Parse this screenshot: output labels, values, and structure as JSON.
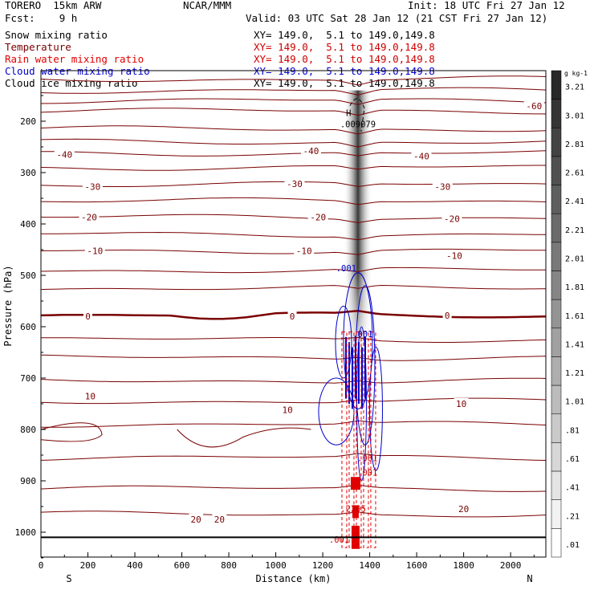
{
  "header": {
    "model": "TORERO  15km ARW",
    "org": "NCAR/MMM",
    "init": "Init: 18 UTC Fri 27 Jan 12",
    "fcst": "Fcst:    9 h",
    "valid": "Valid: 03 UTC Sat 28 Jan 12 (21 CST Fri 27 Jan 12)"
  },
  "legend": [
    {
      "label": "Snow mixing ratio",
      "xy": "XY= 149.0,  5.1 to 149.0,149.8",
      "color": "#000000",
      "xy_color": "#000000"
    },
    {
      "label": "Temperature",
      "xy": "XY= 149.0,  5.1 to 149.0,149.8",
      "color": "#7a0000",
      "xy_color": "#cc0000"
    },
    {
      "label": "Rain water mixing ratio",
      "xy": "XY= 149.0,  5.1 to 149.0,149.8",
      "color": "#e00000",
      "xy_color": "#cc0000"
    },
    {
      "label": "Cloud water mixing ratio",
      "xy": "XY= 149.0,  5.1 to 149.0,149.8",
      "color": "#0000cc",
      "xy_color": "#0000cc"
    },
    {
      "label": "Cloud ice mixing ratio",
      "xy": "XY= 149.0,  5.1 to 149.0,149.8",
      "color": "#000000",
      "xy_color": "#000000"
    }
  ],
  "chart_data": {
    "type": "contour-cross-section",
    "xlabel": "Distance (km)",
    "ylabel": "Pressure (hPa)",
    "xlim": [
      0,
      2150
    ],
    "ylim": [
      1040,
      110
    ],
    "x_ticks": [
      0,
      200,
      400,
      600,
      800,
      1000,
      1200,
      1400,
      1600,
      1800,
      2000
    ],
    "y_ticks": [
      200,
      300,
      400,
      500,
      600,
      700,
      800,
      900,
      1000
    ],
    "endpoints": {
      "left": "S",
      "right": "N"
    },
    "colorbar": {
      "units": "g kg-1",
      "labels": [
        "3.21",
        "3.01",
        "2.81",
        "2.61",
        "2.41",
        "2.21",
        "2.01",
        "1.81",
        "1.61",
        "1.41",
        "1.21",
        "1.01",
        ".81",
        ".61",
        ".41",
        ".21",
        ".01"
      ]
    },
    "temperature_labels": [
      {
        "x": 2100,
        "p": 170,
        "text": "-60"
      },
      {
        "x": 100,
        "p": 265,
        "text": "-40"
      },
      {
        "x": 1150,
        "p": 258,
        "text": "-40"
      },
      {
        "x": 1620,
        "p": 268,
        "text": "-40"
      },
      {
        "x": 220,
        "p": 327,
        "text": "-30"
      },
      {
        "x": 1080,
        "p": 322,
        "text": "-30"
      },
      {
        "x": 1710,
        "p": 327,
        "text": "-30"
      },
      {
        "x": 205,
        "p": 387,
        "text": "-20"
      },
      {
        "x": 1180,
        "p": 387,
        "text": "-20"
      },
      {
        "x": 1750,
        "p": 390,
        "text": "-20"
      },
      {
        "x": 230,
        "p": 452,
        "text": "-10"
      },
      {
        "x": 1120,
        "p": 452,
        "text": "-10"
      },
      {
        "x": 1760,
        "p": 462,
        "text": "-10"
      },
      {
        "x": 200,
        "p": 580,
        "text": "0"
      },
      {
        "x": 1070,
        "p": 580,
        "text": "0"
      },
      {
        "x": 1730,
        "p": 578,
        "text": "0"
      },
      {
        "x": 210,
        "p": 735,
        "text": "10"
      },
      {
        "x": 1050,
        "p": 762,
        "text": "10"
      },
      {
        "x": 1790,
        "p": 750,
        "text": "10"
      },
      {
        "x": 660,
        "p": 975,
        "text": "20"
      },
      {
        "x": 760,
        "p": 975,
        "text": "20"
      },
      {
        "x": 1800,
        "p": 955,
        "text": "20"
      }
    ],
    "temperature_levels": [
      {
        "p": 118,
        "value": null
      },
      {
        "p": 140,
        "value": -60
      },
      {
        "p": 160,
        "value": null
      },
      {
        "p": 180,
        "value": null
      },
      {
        "p": 215,
        "value": null
      },
      {
        "p": 240,
        "value": null
      },
      {
        "p": 262,
        "value": -40
      },
      {
        "p": 290,
        "value": null
      },
      {
        "p": 323,
        "value": -30
      },
      {
        "p": 355,
        "value": null
      },
      {
        "p": 387,
        "value": -20
      },
      {
        "p": 420,
        "value": null
      },
      {
        "p": 452,
        "value": -10
      },
      {
        "p": 490,
        "value": null
      },
      {
        "p": 525,
        "value": null
      },
      {
        "p": 578,
        "value": 0
      },
      {
        "p": 625,
        "value": null
      },
      {
        "p": 660,
        "value": null
      },
      {
        "p": 705,
        "value": null
      },
      {
        "p": 745,
        "value": 10
      },
      {
        "p": 790,
        "value": null
      },
      {
        "p": 855,
        "value": null
      },
      {
        "p": 915,
        "value": null
      },
      {
        "p": 965,
        "value": 20
      }
    ],
    "annotations": [
      {
        "x": 1310,
        "p": 190,
        "text": "H"
      },
      {
        "x": 1350,
        "p": 212,
        "text": ".009079"
      },
      {
        "x": 1300,
        "p": 492,
        "text": ".001"
      },
      {
        "x": 1370,
        "p": 620,
        "text": ".001"
      },
      {
        "x": 1390,
        "p": 862,
        "text": ".001"
      },
      {
        "x": 1390,
        "p": 890,
        "text": ".001"
      },
      {
        "x": 1330,
        "p": 960,
        "text": ".2295"
      },
      {
        "x": 1270,
        "p": 1020,
        "text": ".001"
      }
    ],
    "precip_column": {
      "x_center": 1350,
      "p_top": 140,
      "p_bottom": 1030
    }
  }
}
